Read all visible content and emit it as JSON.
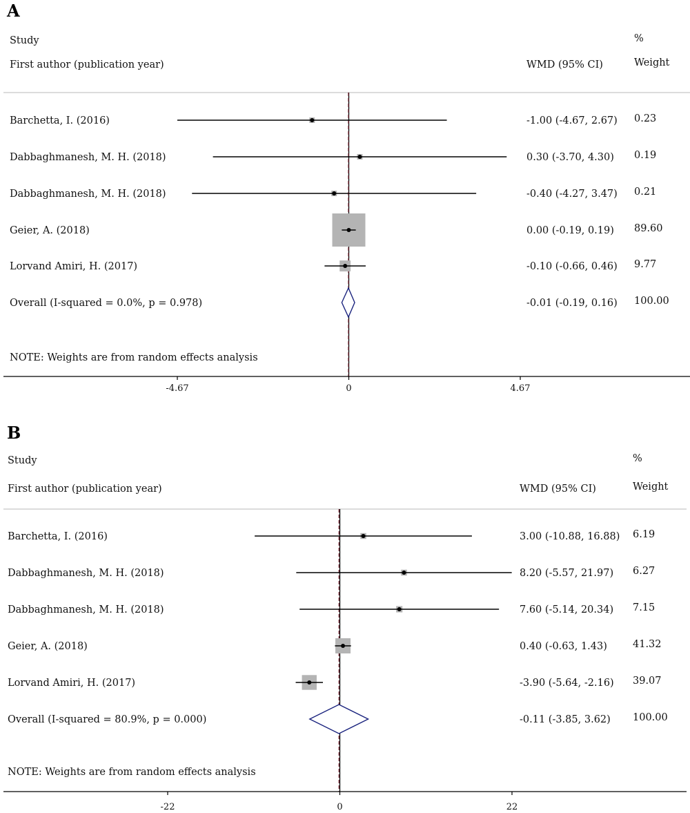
{
  "chart_data": [
    {
      "type": "forest",
      "panel": "A",
      "header": {
        "study": "Study",
        "author": "First author (publication year)",
        "effect": "WMD (95% CI)",
        "pct": "%",
        "weight": "Weight"
      },
      "studies": [
        {
          "label": "Barchetta, I. (2016)",
          "est": -1.0,
          "lo": -4.67,
          "hi": 2.67,
          "ci_text": "-1.00 (-4.67, 2.67)",
          "weight": 0.23,
          "weight_text": "0.23"
        },
        {
          "label": "Dabbaghmanesh, M. H. (2018)",
          "est": 0.3,
          "lo": -3.7,
          "hi": 4.3,
          "ci_text": "0.30 (-3.70, 4.30)",
          "weight": 0.19,
          "weight_text": "0.19"
        },
        {
          "label": "Dabbaghmanesh, M. H. (2018)",
          "est": -0.4,
          "lo": -4.27,
          "hi": 3.47,
          "ci_text": "-0.40 (-4.27, 3.47)",
          "weight": 0.21,
          "weight_text": "0.21"
        },
        {
          "label": "Geier, A. (2018)",
          "est": 0.0,
          "lo": -0.19,
          "hi": 0.19,
          "ci_text": "0.00 (-0.19, 0.19)",
          "weight": 89.6,
          "weight_text": "89.60"
        },
        {
          "label": "Lorvand Amiri, H. (2017)",
          "est": -0.1,
          "lo": -0.66,
          "hi": 0.46,
          "ci_text": "-0.10 (-0.66, 0.46)",
          "weight": 9.77,
          "weight_text": "9.77"
        }
      ],
      "overall": {
        "label": "Overall  (I-squared = 0.0%, p = 0.978)",
        "est": -0.01,
        "lo": -0.19,
        "hi": 0.16,
        "ci_text": "-0.01 (-0.19, 0.16)",
        "weight_text": "100.00"
      },
      "note": "NOTE: Weights are from random effects analysis",
      "xticks": [
        -4.67,
        0,
        4.67
      ],
      "xtick_labels": [
        "-4.67",
        "0",
        "4.67"
      ],
      "xlim": [
        -4.67,
        4.67
      ]
    },
    {
      "type": "forest",
      "panel": "B",
      "header": {
        "study": "Study",
        "author": "First author (publication year)",
        "effect": "WMD (95% CI)",
        "pct": "%",
        "weight": "Weight"
      },
      "studies": [
        {
          "label": "Barchetta, I. (2016)",
          "est": 3.0,
          "lo": -10.88,
          "hi": 16.88,
          "ci_text": "3.00 (-10.88, 16.88)",
          "weight": 6.19,
          "weight_text": "6.19"
        },
        {
          "label": "Dabbaghmanesh, M. H. (2018)",
          "est": 8.2,
          "lo": -5.57,
          "hi": 21.97,
          "ci_text": "8.20 (-5.57, 21.97)",
          "weight": 6.27,
          "weight_text": "6.27"
        },
        {
          "label": "Dabbaghmanesh, M. H. (2018)",
          "est": 7.6,
          "lo": -5.14,
          "hi": 20.34,
          "ci_text": "7.60 (-5.14, 20.34)",
          "weight": 7.15,
          "weight_text": "7.15"
        },
        {
          "label": "Geier, A. (2018)",
          "est": 0.4,
          "lo": -0.63,
          "hi": 1.43,
          "ci_text": "0.40 (-0.63, 1.43)",
          "weight": 41.32,
          "weight_text": "41.32"
        },
        {
          "label": "Lorvand Amiri, H. (2017)",
          "est": -3.9,
          "lo": -5.64,
          "hi": -2.16,
          "ci_text": "-3.90 (-5.64, -2.16)",
          "weight": 39.07,
          "weight_text": "39.07"
        }
      ],
      "overall": {
        "label": "Overall  (I-squared = 80.9%, p = 0.000)",
        "est": -0.11,
        "lo": -3.85,
        "hi": 3.62,
        "ci_text": "-0.11 (-3.85, 3.62)",
        "weight_text": "100.00"
      },
      "note": "NOTE: Weights are from random effects analysis",
      "xticks": [
        -22,
        0,
        22
      ],
      "xtick_labels": [
        "-22",
        "0",
        "22"
      ],
      "xlim": [
        -22,
        22
      ]
    }
  ],
  "colors": {
    "ci_line": "#000000",
    "box": "#b4b4b4",
    "diamond": "#1a237e",
    "overall_line": "#7b2d3b",
    "axis": "#000000",
    "divider": "#c8c8c8"
  }
}
